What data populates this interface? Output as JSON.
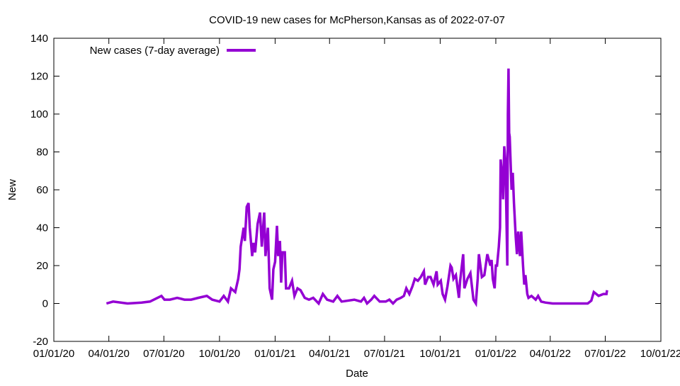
{
  "chart_data": {
    "type": "line",
    "title": "COVID-19 new cases for McPherson,Kansas as of 2022-07-07",
    "xlabel": "Date",
    "ylabel": "New",
    "x_unit": "days since 2020-01-01",
    "xlim": [
      0,
      1004
    ],
    "ylim": [
      -20,
      140
    ],
    "yticks": [
      -20,
      0,
      20,
      40,
      60,
      80,
      100,
      120,
      140
    ],
    "xticks": [
      {
        "day": 0,
        "label": "01/01/20"
      },
      {
        "day": 91,
        "label": "04/01/20"
      },
      {
        "day": 182,
        "label": "07/01/20"
      },
      {
        "day": 274,
        "label": "10/01/20"
      },
      {
        "day": 366,
        "label": "01/01/21"
      },
      {
        "day": 456,
        "label": "04/01/21"
      },
      {
        "day": 547,
        "label": "07/01/21"
      },
      {
        "day": 639,
        "label": "10/01/21"
      },
      {
        "day": 731,
        "label": "01/01/22"
      },
      {
        "day": 821,
        "label": "04/01/22"
      },
      {
        "day": 912,
        "label": "07/01/22"
      },
      {
        "day": 1004,
        "label": "10/01/22"
      }
    ],
    "legend_position": "top-left",
    "grid": false,
    "series": [
      {
        "name": "New cases (7-day average)",
        "color": "#9400d3",
        "points": [
          [
            87,
            0
          ],
          [
            98,
            1
          ],
          [
            122,
            0
          ],
          [
            145,
            0.5
          ],
          [
            159,
            1
          ],
          [
            178,
            4
          ],
          [
            183,
            2
          ],
          [
            192,
            2
          ],
          [
            204,
            3
          ],
          [
            216,
            2
          ],
          [
            227,
            2
          ],
          [
            239,
            3
          ],
          [
            253,
            4
          ],
          [
            262,
            2
          ],
          [
            274,
            1
          ],
          [
            281,
            4
          ],
          [
            288,
            1
          ],
          [
            293,
            8
          ],
          [
            300,
            6
          ],
          [
            305,
            13
          ],
          [
            307,
            18
          ],
          [
            309,
            30
          ],
          [
            314,
            40
          ],
          [
            316,
            33
          ],
          [
            319,
            51
          ],
          [
            322,
            53
          ],
          [
            324,
            40
          ],
          [
            328,
            25
          ],
          [
            330,
            32
          ],
          [
            333,
            27
          ],
          [
            337,
            42
          ],
          [
            341,
            48
          ],
          [
            344,
            30
          ],
          [
            348,
            48
          ],
          [
            350,
            25
          ],
          [
            354,
            40
          ],
          [
            357,
            8
          ],
          [
            361,
            2
          ],
          [
            363,
            18
          ],
          [
            366,
            22
          ],
          [
            369,
            41
          ],
          [
            371,
            25
          ],
          [
            374,
            33
          ],
          [
            376,
            11
          ],
          [
            378,
            27
          ],
          [
            382,
            27
          ],
          [
            384,
            8
          ],
          [
            389,
            8
          ],
          [
            394,
            12
          ],
          [
            398,
            4
          ],
          [
            403,
            8
          ],
          [
            408,
            7
          ],
          [
            415,
            3
          ],
          [
            422,
            2
          ],
          [
            429,
            3
          ],
          [
            438,
            0
          ],
          [
            445,
            5
          ],
          [
            452,
            2
          ],
          [
            462,
            1
          ],
          [
            469,
            4
          ],
          [
            476,
            1
          ],
          [
            497,
            2
          ],
          [
            508,
            1
          ],
          [
            513,
            3
          ],
          [
            518,
            0
          ],
          [
            525,
            2
          ],
          [
            530,
            4
          ],
          [
            539,
            1
          ],
          [
            549,
            1
          ],
          [
            555,
            2
          ],
          [
            561,
            0
          ],
          [
            567,
            2
          ],
          [
            574,
            3
          ],
          [
            579,
            4
          ],
          [
            583,
            8
          ],
          [
            588,
            5
          ],
          [
            593,
            9
          ],
          [
            597,
            13
          ],
          [
            602,
            12
          ],
          [
            607,
            14
          ],
          [
            612,
            17
          ],
          [
            614,
            10
          ],
          [
            619,
            14
          ],
          [
            623,
            14
          ],
          [
            628,
            10
          ],
          [
            633,
            17
          ],
          [
            635,
            10
          ],
          [
            640,
            12
          ],
          [
            643,
            5
          ],
          [
            647,
            2
          ],
          [
            651,
            9
          ],
          [
            656,
            20
          ],
          [
            658,
            19
          ],
          [
            661,
            13
          ],
          [
            665,
            15
          ],
          [
            670,
            3
          ],
          [
            672,
            12
          ],
          [
            677,
            26
          ],
          [
            679,
            8
          ],
          [
            684,
            13
          ],
          [
            689,
            16
          ],
          [
            694,
            2
          ],
          [
            698,
            0
          ],
          [
            701,
            13
          ],
          [
            703,
            26
          ],
          [
            708,
            14
          ],
          [
            712,
            15
          ],
          [
            717,
            26
          ],
          [
            722,
            20
          ],
          [
            724,
            23
          ],
          [
            726,
            13
          ],
          [
            729,
            8
          ],
          [
            731,
            20
          ],
          [
            733,
            20
          ],
          [
            736,
            30
          ],
          [
            738,
            40
          ],
          [
            739,
            76
          ],
          [
            742,
            65
          ],
          [
            743,
            55
          ],
          [
            745,
            83
          ],
          [
            747,
            75
          ],
          [
            750,
            20
          ],
          [
            751,
            100
          ],
          [
            752,
            124
          ],
          [
            753,
            90
          ],
          [
            754,
            88
          ],
          [
            757,
            60
          ],
          [
            759,
            69
          ],
          [
            761,
            53
          ],
          [
            764,
            35
          ],
          [
            766,
            26
          ],
          [
            768,
            38
          ],
          [
            771,
            25
          ],
          [
            773,
            38
          ],
          [
            776,
            20
          ],
          [
            778,
            10
          ],
          [
            780,
            15
          ],
          [
            783,
            5
          ],
          [
            785,
            3
          ],
          [
            790,
            4
          ],
          [
            797,
            2
          ],
          [
            801,
            4
          ],
          [
            806,
            1
          ],
          [
            813,
            0.5
          ],
          [
            825,
            0
          ],
          [
            883,
            0
          ],
          [
            889,
            1.5
          ],
          [
            893,
            6
          ],
          [
            901,
            4
          ],
          [
            909,
            5
          ],
          [
            914,
            5
          ],
          [
            915,
            7
          ]
        ]
      }
    ]
  }
}
